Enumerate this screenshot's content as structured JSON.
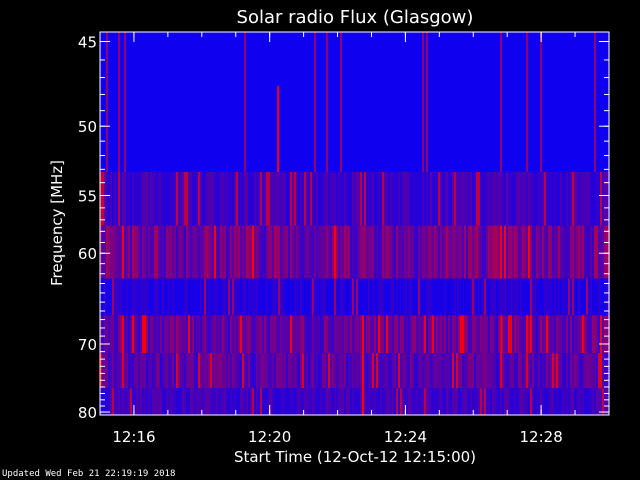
{
  "chart_data": {
    "type": "heatmap",
    "title": "Solar radio Flux (Glasgow)",
    "xlabel": "Start Time (12-Oct-12 12:15:00)",
    "ylabel": "Frequency [MHz]",
    "x_ticks": [
      "12:16",
      "12:20",
      "12:24",
      "12:28"
    ],
    "y_ticks": [
      "45",
      "50",
      "55",
      "60",
      "70",
      "80"
    ],
    "xlim": [
      "12:15:00",
      "12:30:00"
    ],
    "ylim": [
      80.5,
      44.5
    ],
    "y_scale": "reciprocal",
    "colors": {
      "low": "#0000ff",
      "high": "#ff0000"
    },
    "bands": [
      {
        "fmin": 44.5,
        "fmax": 53.2,
        "level": 0.12
      },
      {
        "fmin": 53.2,
        "fmax": 57.5,
        "level": 0.3
      },
      {
        "fmin": 57.5,
        "fmax": 62.5,
        "level": 0.55
      },
      {
        "fmin": 62.5,
        "fmax": 66.5,
        "level": 0.18
      },
      {
        "fmin": 66.5,
        "fmax": 71.2,
        "level": 0.5
      },
      {
        "fmin": 71.2,
        "fmax": 76.2,
        "level": 0.42
      },
      {
        "fmin": 76.2,
        "fmax": 80.5,
        "level": 0.3
      }
    ],
    "bursts": [
      {
        "time": "12:20:15",
        "fmin": 47.5,
        "fmax": 53.2
      },
      {
        "time": "12:22:45",
        "fmin": 66.5,
        "fmax": 80.5
      },
      {
        "time": "12:26:50",
        "fmin": 66.5,
        "fmax": 71.2
      }
    ]
  },
  "footer": "Updated Wed Feb 21 22:19:19 2018"
}
